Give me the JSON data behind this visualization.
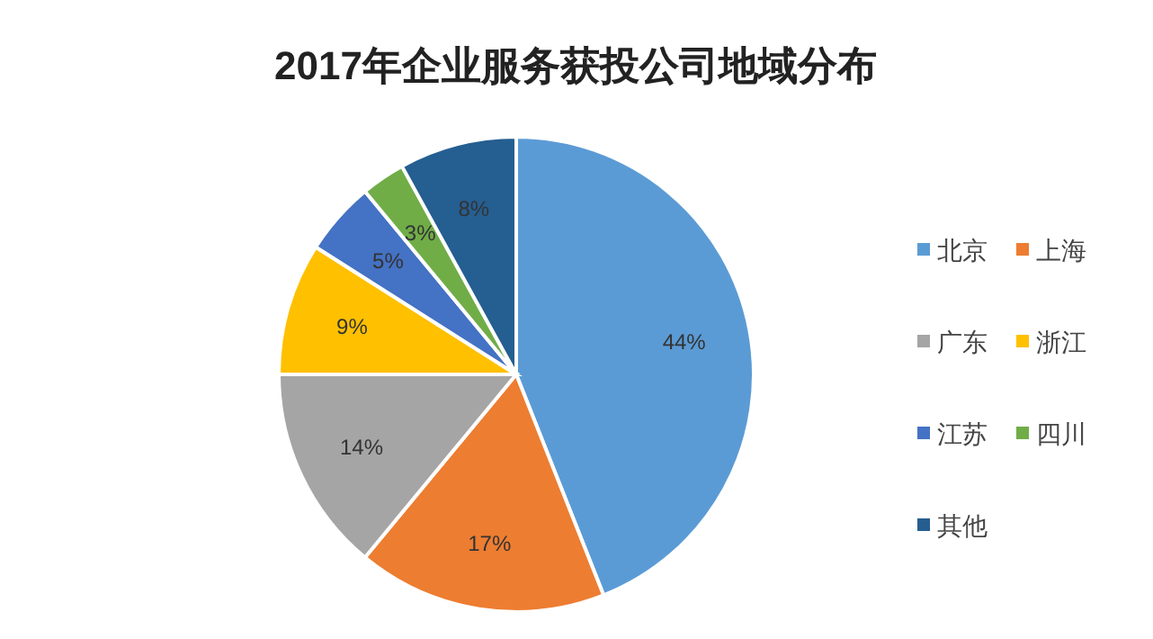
{
  "chart_data": {
    "type": "pie",
    "title": "2017年企业服务获投公司地域分布",
    "categories": [
      "北京",
      "上海",
      "广东",
      "浙江",
      "江苏",
      "四川",
      "其他"
    ],
    "values": [
      44,
      17,
      14,
      9,
      5,
      3,
      8
    ],
    "value_labels": [
      "44%",
      "17%",
      "14%",
      "9%",
      "5%",
      "3%",
      "8%"
    ],
    "colors": [
      "#5b9bd5",
      "#ed7d31",
      "#a5a5a5",
      "#ffc000",
      "#4472c4",
      "#70ad47",
      "#255e91"
    ],
    "legend": "right"
  }
}
